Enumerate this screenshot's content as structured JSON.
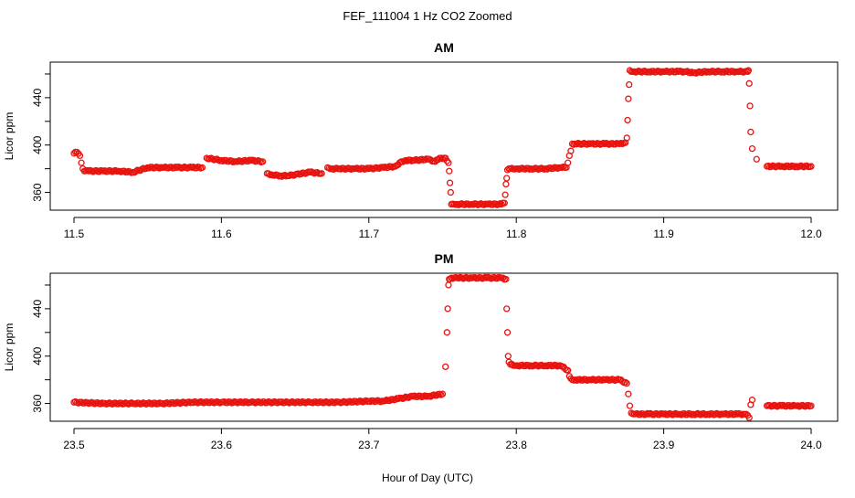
{
  "figure": {
    "title": "FEF_111004  1 Hz CO2 Zoomed",
    "xlabel": "Hour of Day (UTC)"
  },
  "colors": {
    "points": "#e8130f",
    "axes": "#000000"
  },
  "chart_data": [
    {
      "type": "scatter",
      "title": "AM",
      "xlabel": "Hour of Day (UTC)",
      "ylabel": "Licor ppm",
      "xlim": [
        11.5,
        12.0
      ],
      "ylim": [
        345,
        470
      ],
      "xticks": [
        11.5,
        11.6,
        11.7,
        11.8,
        11.9,
        12.0
      ],
      "xtick_labels": [
        "11.5",
        "11.6",
        "11.7",
        "11.8",
        "11.9",
        "12.0"
      ],
      "yticks": [
        360,
        400,
        440
      ],
      "ytick_labels": [
        "360",
        "400",
        "440"
      ],
      "grid": false,
      "marker": "open-circle",
      "series": [
        {
          "x": [
            11.5,
            11.502,
            11.504,
            11.505,
            11.506,
            11.507,
            11.51,
            11.52,
            11.53,
            11.54,
            11.55,
            11.56,
            11.57,
            11.58,
            11.587,
            11.59,
            11.6,
            11.61,
            11.62,
            11.628,
            11.631,
            11.634,
            11.64,
            11.645,
            11.65,
            11.66,
            11.668,
            11.672,
            11.675,
            11.68,
            11.69,
            11.7,
            11.71,
            11.718,
            11.722,
            11.725,
            11.73,
            11.74,
            11.745,
            11.748,
            11.752,
            11.754,
            11.7545,
            11.755,
            11.7555,
            11.756,
            11.758,
            11.76,
            11.77,
            11.78,
            11.79,
            11.792,
            11.7925,
            11.793,
            11.7935,
            11.794,
            11.795,
            11.796,
            11.8,
            11.81,
            11.82,
            11.83,
            11.834,
            11.835,
            11.836,
            11.837,
            11.838,
            11.84,
            11.85,
            11.86,
            11.87,
            11.874,
            11.875,
            11.8755,
            11.876,
            11.8765,
            11.877,
            11.878,
            11.88,
            11.89,
            11.9,
            11.91,
            11.915,
            11.92,
            11.93,
            11.94,
            11.95,
            11.955,
            11.957,
            11.9575,
            11.958,
            11.9585,
            11.959,
            11.96,
            11.963,
            11.97,
            11.98,
            11.99,
            12.0
          ],
          "y": [
            393,
            394,
            391,
            385,
            380,
            378,
            378,
            378,
            378,
            377,
            381,
            381,
            381,
            381,
            381,
            389,
            387,
            386,
            387,
            386,
            376,
            375,
            374,
            374,
            375,
            377,
            376,
            381,
            380,
            380,
            380,
            380,
            381,
            382,
            386,
            387,
            387,
            388,
            386,
            389,
            389,
            385,
            378,
            368,
            360,
            350,
            350,
            350,
            350,
            350,
            350,
            351,
            358,
            367,
            372,
            379,
            380,
            380,
            380,
            380,
            380,
            381,
            381,
            385,
            391,
            395,
            401,
            401,
            401,
            401,
            401,
            402,
            406,
            421,
            439,
            451,
            463,
            462,
            462,
            462,
            462,
            462,
            462,
            461,
            462,
            462,
            462,
            462,
            462,
            463,
            452,
            433,
            411,
            397,
            388,
            382,
            382,
            382,
            382
          ]
        }
      ]
    },
    {
      "type": "scatter",
      "title": "PM",
      "xlabel": "Hour of Day (UTC)",
      "ylabel": "Licor ppm",
      "xlim": [
        23.5,
        24.0
      ],
      "ylim": [
        345,
        470
      ],
      "xticks": [
        23.5,
        23.6,
        23.7,
        23.8,
        23.9,
        24.0
      ],
      "xtick_labels": [
        "23.5",
        "23.6",
        "23.7",
        "23.8",
        "23.9",
        "24.0"
      ],
      "yticks": [
        360,
        400,
        440
      ],
      "ytick_labels": [
        "360",
        "400",
        "440"
      ],
      "grid": false,
      "marker": "open-circle",
      "series": [
        {
          "x": [
            23.5,
            23.52,
            23.54,
            23.56,
            23.58,
            23.6,
            23.62,
            23.64,
            23.66,
            23.68,
            23.7,
            23.71,
            23.72,
            23.73,
            23.74,
            23.75,
            23.752,
            23.753,
            23.7535,
            23.754,
            23.7545,
            23.755,
            23.756,
            23.76,
            23.77,
            23.78,
            23.79,
            23.793,
            23.7935,
            23.794,
            23.7945,
            23.795,
            23.796,
            23.8,
            23.81,
            23.82,
            23.83,
            23.835,
            23.836,
            23.837,
            23.838,
            23.84,
            23.85,
            23.86,
            23.87,
            23.875,
            23.876,
            23.877,
            23.878,
            23.88,
            23.89,
            23.9,
            23.91,
            23.92,
            23.93,
            23.94,
            23.95,
            23.955,
            23.957,
            23.958,
            23.959,
            23.96,
            23.97,
            23.98,
            23.99,
            24.0
          ],
          "y": [
            361,
            360,
            360,
            360,
            361,
            361,
            361,
            361,
            361,
            361,
            362,
            362,
            364,
            366,
            366,
            368,
            391,
            420,
            440,
            460,
            465,
            465,
            466,
            466,
            466,
            466,
            466,
            465,
            440,
            420,
            400,
            395,
            393,
            392,
            392,
            392,
            392,
            388,
            383,
            381,
            380,
            380,
            380,
            380,
            380,
            377,
            368,
            358,
            352,
            351,
            351,
            351,
            351,
            351,
            351,
            351,
            351,
            351,
            350,
            348,
            359,
            363,
            358,
            358,
            358,
            358
          ]
        }
      ]
    }
  ]
}
